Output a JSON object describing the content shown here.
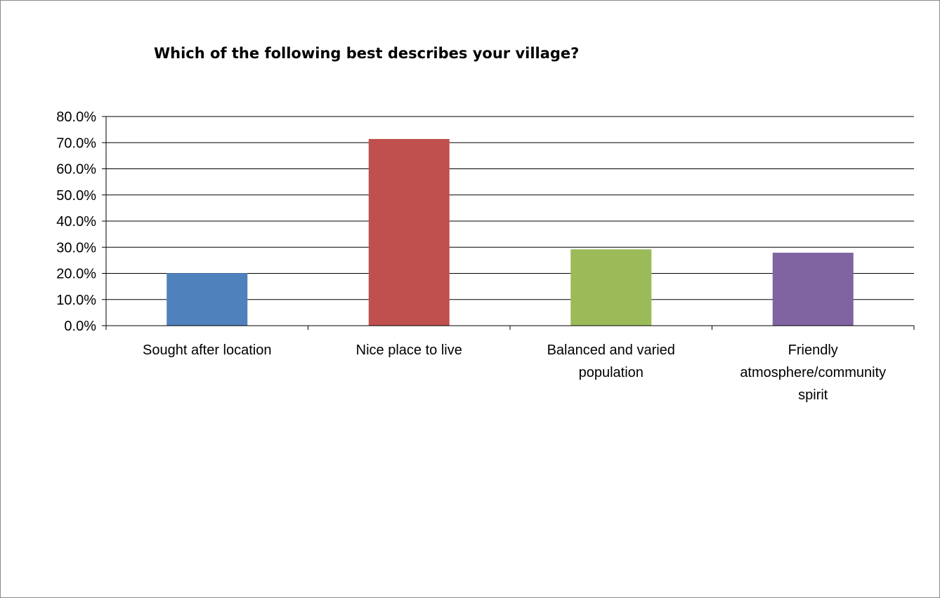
{
  "chart_data": {
    "type": "bar",
    "title": "Which of the following best describes your village?",
    "categories": [
      [
        "Sought after location"
      ],
      [
        "Nice place to live"
      ],
      [
        "Balanced and varied",
        "population"
      ],
      [
        "Friendly",
        "atmosphere/community",
        "spirit"
      ]
    ],
    "values": [
      20.1,
      71.4,
      29.2,
      27.9
    ],
    "colors": [
      "#4F81BD",
      "#C0504D",
      "#9BBB59",
      "#8064A2"
    ],
    "ylim": [
      0,
      80
    ],
    "yticks": [
      "0.0%",
      "10.0%",
      "20.0%",
      "30.0%",
      "40.0%",
      "50.0%",
      "60.0%",
      "70.0%",
      "80.0%"
    ],
    "xlabel": "",
    "ylabel": "",
    "grid": true,
    "legend": "none"
  }
}
